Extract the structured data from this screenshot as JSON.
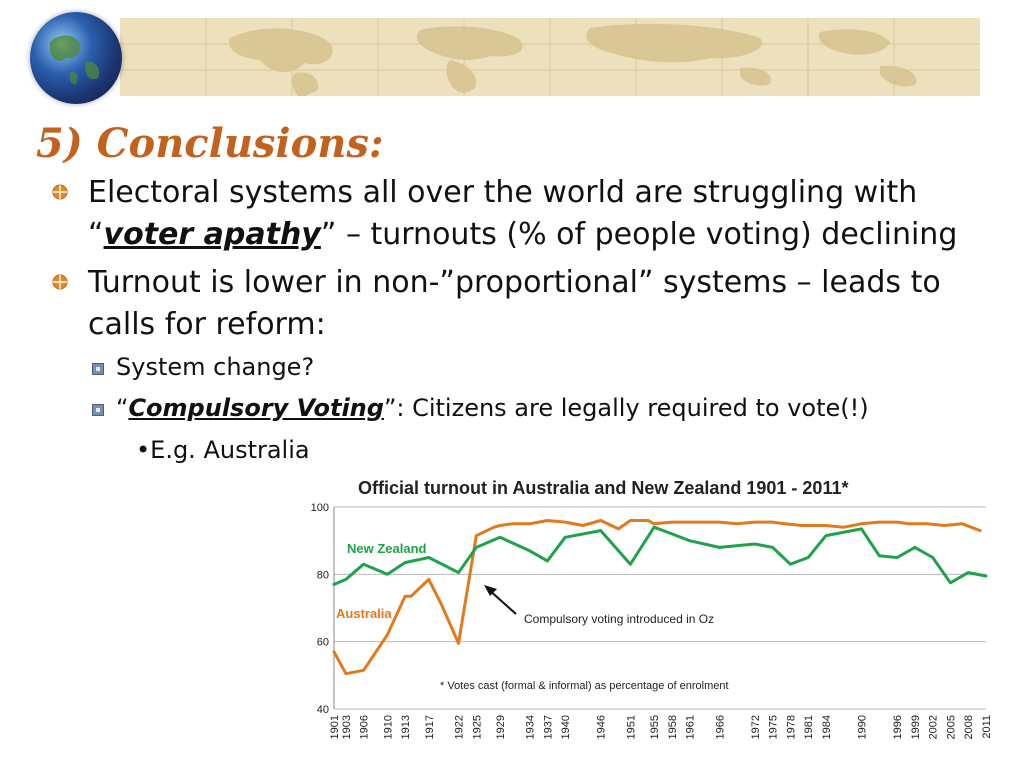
{
  "slide": {
    "title": "5) Conclusions:",
    "bullet1_line1": "Electoral systems all over the world are struggling with",
    "bullet1_open": "“",
    "bullet1_em": "voter apathy",
    "bullet1_rest": "” – turnouts (% of people voting) declining",
    "bullet2_line1": "Turnout is lower in non-”proportional” systems – leads to",
    "bullet2_line2": "calls for reform:",
    "sub1": "System change?",
    "sub2_open": "“",
    "sub2_em": "Compulsory Voting",
    "sub2_rest": "”: Citizens are legally required to vote(!)",
    "sub3": "•E.g. Australia"
  },
  "colors": {
    "title": "#c3621e",
    "australia": "#e07a1f",
    "new_zealand": "#1fa24a",
    "banner": "#ede0bd"
  },
  "icons": [
    "globe-icon",
    "world-map-banner",
    "bullet-icon",
    "sub-bullet-icon",
    "arrow-icon"
  ],
  "chart_data": {
    "type": "line",
    "title": "Official turnout in Australia and New Zealand 1901 - 2011*",
    "xlabel": "",
    "ylabel": "",
    "ylim": [
      40,
      100
    ],
    "yticks": [
      40,
      60,
      80,
      100
    ],
    "grid": true,
    "categories": [
      "1901",
      "1903",
      "1906",
      "1910",
      "1913",
      "1917",
      "1922",
      "1925",
      "1929",
      "1934",
      "1937",
      "1940",
      "1946",
      "1951",
      "1955",
      "1958",
      "1961",
      "1966",
      "1972",
      "1975",
      "1978",
      "1981",
      "1984",
      "1990",
      "1996",
      "1999",
      "2002",
      "2005",
      "2008",
      "2011"
    ],
    "series": [
      {
        "name": "Australia",
        "label_text": "Australia",
        "color": "#e07a1f",
        "x": [
          1901,
          1903,
          1906,
          1910,
          1913,
          1914,
          1917,
          1919,
          1922,
          1925,
          1928,
          1929,
          1931,
          1934,
          1937,
          1940,
          1943,
          1946,
          1949,
          1951,
          1954,
          1955,
          1958,
          1961,
          1963,
          1966,
          1969,
          1972,
          1974,
          1975,
          1977,
          1980,
          1983,
          1984,
          1987,
          1990,
          1993,
          1996,
          1998,
          2001,
          2004,
          2007,
          2010
        ],
        "y": [
          57,
          50.5,
          51.5,
          62,
          73.5,
          73.5,
          78.5,
          71.5,
          59.5,
          91.5,
          94,
          94.5,
          95,
          95,
          96,
          95.5,
          94.5,
          96,
          93.5,
          96,
          96,
          95,
          95.5,
          95.5,
          95.5,
          95.5,
          95,
          95.5,
          95.5,
          95.5,
          95,
          94.5,
          94.5,
          94.5,
          94,
          95,
          95.5,
          95.5,
          95,
          95,
          94.5,
          95,
          93
        ]
      },
      {
        "name": "New Zealand",
        "label_text": "New Zealand",
        "color": "#1fa24a",
        "x": [
          1901,
          1903,
          1906,
          1910,
          1913,
          1917,
          1922,
          1925,
          1929,
          1934,
          1937,
          1940,
          1946,
          1951,
          1955,
          1958,
          1961,
          1966,
          1972,
          1975,
          1978,
          1981,
          1984,
          1990,
          1993,
          1996,
          1999,
          2002,
          2005,
          2008,
          2011
        ],
        "y": [
          77,
          78.5,
          83,
          80,
          83.5,
          85,
          80.5,
          88,
          91,
          87,
          84,
          91,
          93,
          83,
          94,
          92,
          90,
          88,
          89,
          88,
          83,
          85,
          91.5,
          93.5,
          85.5,
          85,
          88,
          85,
          77.5,
          80.5,
          79.5
        ]
      }
    ],
    "annotations": [
      {
        "text": "Compulsory voting introduced in Oz",
        "target_year": 1925
      },
      {
        "text": "* Votes cast (formal & informal) as percentage of enrolment"
      }
    ]
  }
}
